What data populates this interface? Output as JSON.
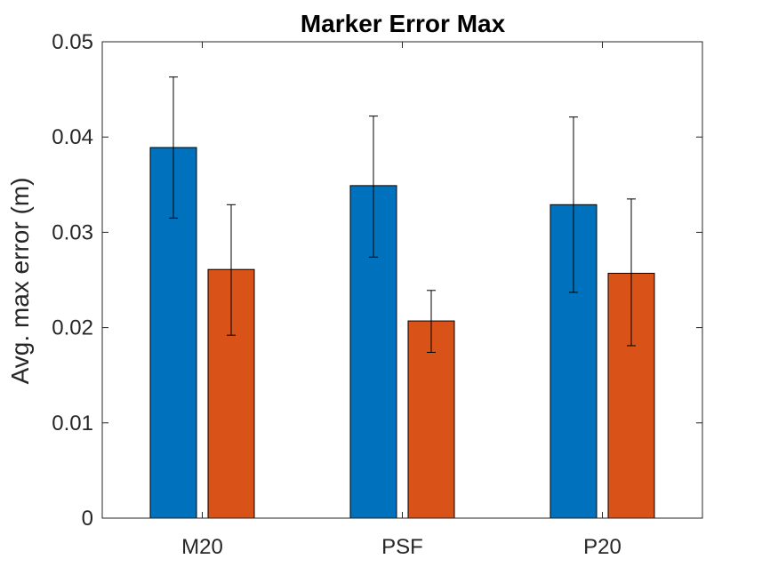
{
  "chart_data": {
    "type": "bar",
    "title": "Marker Error Max",
    "xlabel": "",
    "ylabel": "Avg. max error (m)",
    "categories": [
      "M20",
      "PSF",
      "P20"
    ],
    "ylim": [
      0,
      0.05
    ],
    "yticks": [
      0,
      0.01,
      0.02,
      0.03,
      0.04,
      0.05
    ],
    "ytick_labels": [
      "0",
      "0.01",
      "0.02",
      "0.03",
      "0.04",
      "0.05"
    ],
    "grid": false,
    "legend": null,
    "error_bars": true,
    "series": [
      {
        "color": "#0072BD",
        "values": [
          0.0389,
          0.0349,
          0.0329
        ],
        "err_low": [
          0.0315,
          0.0274,
          0.0237
        ],
        "err_high": [
          0.0463,
          0.0422,
          0.0421
        ]
      },
      {
        "color": "#D95319",
        "values": [
          0.0261,
          0.0207,
          0.0257
        ],
        "err_low": [
          0.0192,
          0.0174,
          0.0181
        ],
        "err_high": [
          0.0329,
          0.0239,
          0.0335
        ]
      }
    ]
  }
}
